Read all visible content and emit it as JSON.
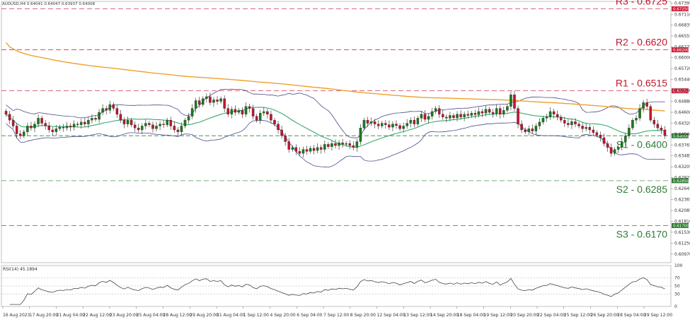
{
  "header": {
    "title": "AUDUSD,H4  0.64041 0.64047 0.63937 0.64008"
  },
  "colors": {
    "up": "#1b7a1b",
    "down": "#c0152f",
    "resistance": "#c0152f",
    "support": "#2e7d32",
    "ma_slow": "#f0a030",
    "ma_fast": "#3aaa70",
    "band": "#4a4a8a",
    "rsi": "#444444"
  },
  "chart_data": [
    {
      "type": "candlestick",
      "title": "AUDUSD,H4  0.64041 0.64047 0.63937 0.64008",
      "y_range": [
        0.6075,
        0.6744
      ],
      "y_ticks": [
        "0.67395",
        "0.67110",
        "0.66835",
        "0.66555",
        "0.66275",
        "0.66000",
        "0.65720",
        "0.65440",
        "0.65160",
        "0.64880",
        "0.64600",
        "0.64320",
        "0.64040",
        "0.63765",
        "0.63485",
        "0.63205",
        "0.62925",
        "0.62645",
        "0.62365",
        "0.62085",
        "0.61810",
        "0.61530",
        "0.61250",
        "0.60970"
      ],
      "x_labels": [
        "16 Aug 2023",
        "17 Aug 20:00",
        "21 Aug 04:00",
        "22 Aug 12:00",
        "23 Aug 20:00",
        "25 Aug 04:00",
        "28 Aug 12:00",
        "29 Aug 20:00",
        "31 Aug 04:00",
        "1 Sep 12:00",
        "4 Sep 20:00",
        "6 Sep 04:00",
        "7 Sep 12:00",
        "8 Sep 20:00",
        "12 Sep 04:00",
        "13 Sep 12:00",
        "14 Sep 20:00",
        "18 Sep 04:00",
        "19 Sep 12:00",
        "20 Sep 20:00",
        "22 Sep 04:00",
        "25 Sep 12:00",
        "26 Sep 20:00",
        "28 Sep 04:00",
        "29 Sep 12:00"
      ],
      "levels": [
        {
          "label": "R3 - 0.6725",
          "value": 0.6725,
          "tag": "0.67250",
          "kind": "resistance"
        },
        {
          "label": "R2 - 0.6620",
          "value": 0.662,
          "tag": "0.66200",
          "kind": "resistance"
        },
        {
          "label": "R1 - 0.6515",
          "value": 0.6515,
          "tag": "0.65150",
          "kind": "resistance"
        },
        {
          "label": "S1 - 0.6400",
          "value": 0.64,
          "tag": "0.64000",
          "kind": "support"
        },
        {
          "label": "S2 - 0.6285",
          "value": 0.6285,
          "tag": "0.62850",
          "kind": "support"
        },
        {
          "label": "S3 - 0.6170",
          "value": 0.617,
          "tag": "0.61700",
          "kind": "support"
        }
      ],
      "closes": [
        0.6455,
        0.644,
        0.6425,
        0.6405,
        0.64,
        0.641,
        0.6425,
        0.642,
        0.643,
        0.6445,
        0.6432,
        0.6425,
        0.6415,
        0.641,
        0.6418,
        0.6422,
        0.642,
        0.6425,
        0.6422,
        0.643,
        0.6428,
        0.6435,
        0.643,
        0.644,
        0.6445,
        0.6442,
        0.646,
        0.647,
        0.6465,
        0.648,
        0.647,
        0.6455,
        0.644,
        0.643,
        0.644,
        0.6428,
        0.642,
        0.6415,
        0.6425,
        0.6432,
        0.6428,
        0.6418,
        0.6425,
        0.643,
        0.6428,
        0.644,
        0.6425,
        0.6415,
        0.641,
        0.6425,
        0.644,
        0.645,
        0.647,
        0.649,
        0.648,
        0.6495,
        0.65,
        0.6485,
        0.6492,
        0.6488,
        0.6495,
        0.647,
        0.6455,
        0.6468,
        0.646,
        0.6465,
        0.6455,
        0.6475,
        0.647,
        0.645,
        0.644,
        0.6458,
        0.6462,
        0.6455,
        0.644,
        0.643,
        0.6415,
        0.64,
        0.6385,
        0.6365,
        0.637,
        0.636,
        0.6355,
        0.6365,
        0.636,
        0.6368,
        0.6362,
        0.637,
        0.6365,
        0.6378,
        0.6372,
        0.638,
        0.6375,
        0.6382,
        0.6378,
        0.638,
        0.6375,
        0.637,
        0.6385,
        0.642,
        0.644,
        0.6432,
        0.6436,
        0.643,
        0.6425,
        0.6432,
        0.6428,
        0.6422,
        0.643,
        0.6426,
        0.6418,
        0.6425,
        0.6432,
        0.644,
        0.643,
        0.6445,
        0.6455,
        0.6442,
        0.645,
        0.6462,
        0.647,
        0.6455,
        0.6448,
        0.6445,
        0.6452,
        0.6446,
        0.6455,
        0.6448,
        0.6455,
        0.6452,
        0.6458,
        0.6454,
        0.6462,
        0.6458,
        0.6468,
        0.646,
        0.6456,
        0.647,
        0.6455,
        0.6465,
        0.6475,
        0.6505,
        0.647,
        0.643,
        0.6415,
        0.641,
        0.6418,
        0.6412,
        0.6425,
        0.6435,
        0.6445,
        0.6448,
        0.6462,
        0.6455,
        0.6448,
        0.644,
        0.6432,
        0.6428,
        0.6436,
        0.643,
        0.6425,
        0.6418,
        0.6422,
        0.6415,
        0.6408,
        0.6402,
        0.6395,
        0.638,
        0.637,
        0.6355,
        0.6365,
        0.637,
        0.6385,
        0.64,
        0.642,
        0.644,
        0.6445,
        0.647,
        0.6485,
        0.6475,
        0.644,
        0.643,
        0.642,
        0.6415,
        0.6401
      ],
      "rsi": {
        "label": "RSI(14) 45.1894",
        "ticks": [
          "100",
          "70",
          "50",
          "30",
          "0"
        ],
        "levels": [
          70,
          50,
          30
        ]
      }
    }
  ]
}
